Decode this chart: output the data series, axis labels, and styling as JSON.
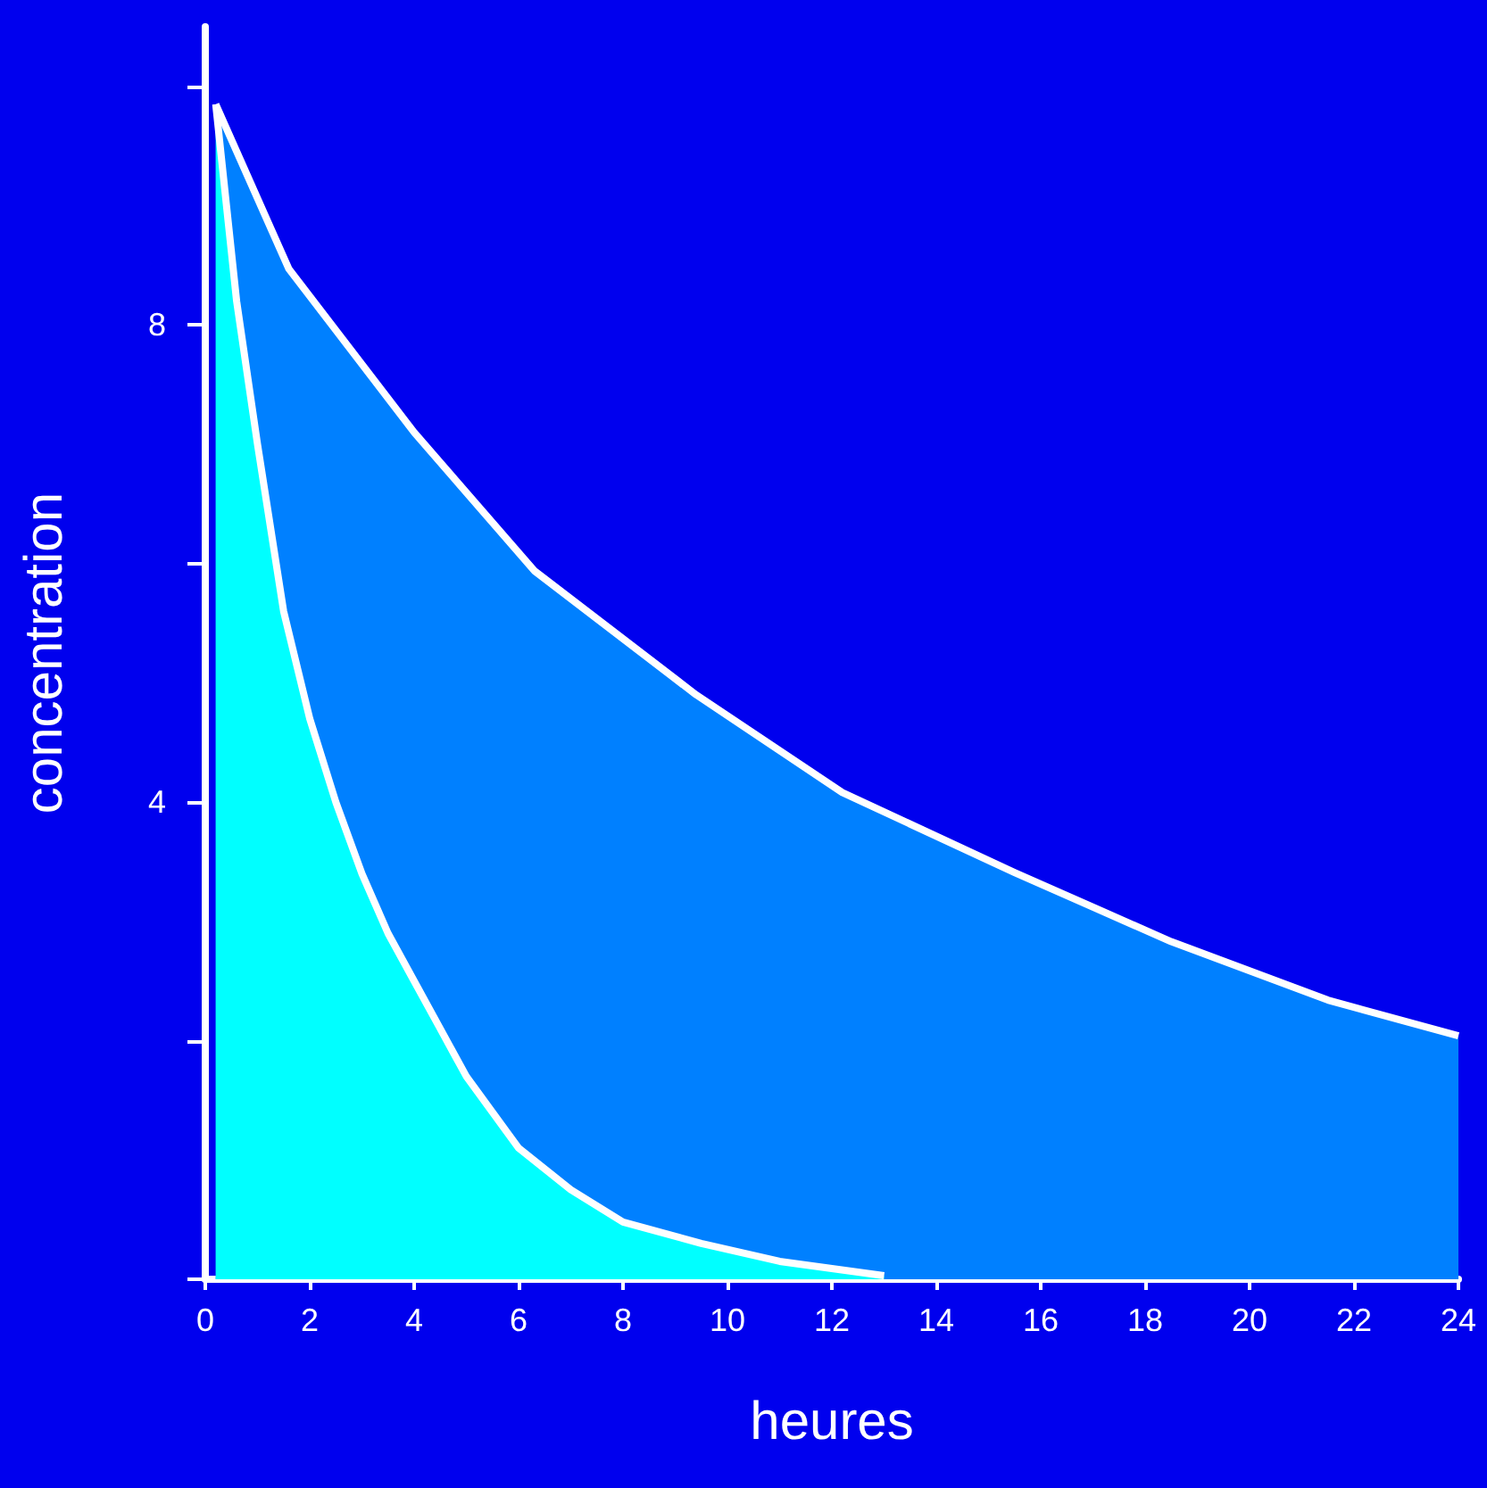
{
  "chart_data": {
    "type": "area",
    "xlabel": "heures",
    "ylabel": "concentration",
    "xlim": [
      0,
      24
    ],
    "xticks": [
      0,
      2,
      4,
      6,
      8,
      10,
      12,
      14,
      16,
      18,
      20,
      22,
      24
    ],
    "ylim": [
      0,
      10.5
    ],
    "yticks": [
      {
        "value": 0,
        "label": null
      },
      {
        "value": 2,
        "label": null
      },
      {
        "value": 4,
        "label": "4"
      },
      {
        "value": 6,
        "label": null
      },
      {
        "value": 8,
        "label": "8"
      },
      {
        "value": 10,
        "label": null
      }
    ],
    "series": [
      {
        "color": "#0080ff",
        "x": [
          0.2,
          1.6,
          4,
          6.3,
          9.4,
          12.2,
          15.5,
          18.5,
          21.5,
          24
        ],
        "values": [
          9.85,
          8.47,
          7.1,
          5.94,
          4.9,
          4.08,
          3.41,
          2.83,
          2.34,
          2.04
        ]
      },
      {
        "color": "#00ffff",
        "x": [
          0.2,
          0.6,
          1,
          1.5,
          2,
          2.5,
          3,
          3.5,
          4,
          4.5,
          5,
          6,
          7,
          8,
          9.5,
          11,
          13
        ],
        "values": [
          9.85,
          8.2,
          7,
          5.6,
          4.7,
          4,
          3.4,
          2.9,
          2.5,
          2.1,
          1.7,
          1.1,
          0.75,
          0.48,
          0.3,
          0.15,
          0.03
        ]
      }
    ]
  }
}
